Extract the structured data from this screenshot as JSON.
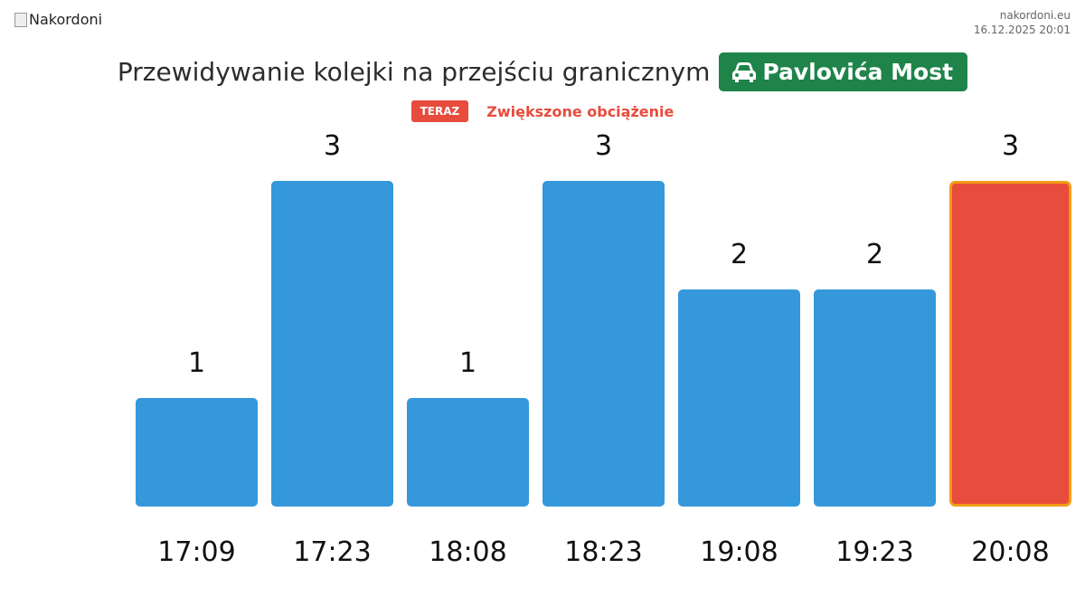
{
  "header": {
    "logo": "Nakordoni",
    "site": "nakordoni.eu",
    "timestamp": "16.12.2025 20:01"
  },
  "chart_data": {
    "type": "bar",
    "title": "Przewidywanie kolejki na przejściu granicznym",
    "crossing": "Pavlovića Most",
    "status": {
      "tag": "TERAZ",
      "text": "Zwiększone obciążenie"
    },
    "categories": [
      "17:09",
      "17:23",
      "18:08",
      "18:23",
      "19:08",
      "19:23",
      "20:08"
    ],
    "values": [
      1,
      3,
      1,
      3,
      2,
      2,
      3
    ],
    "colors": [
      "#3498db",
      "#3498db",
      "#3498db",
      "#3498db",
      "#3498db",
      "#3498db",
      "#e74c3c"
    ],
    "borders": [
      null,
      null,
      null,
      null,
      null,
      null,
      "#f39c12"
    ]
  }
}
